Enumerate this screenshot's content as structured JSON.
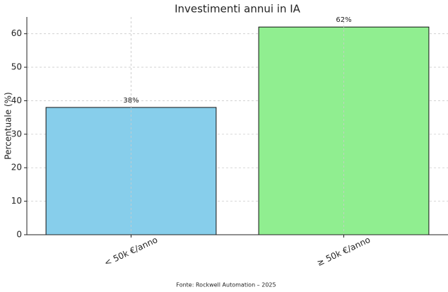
{
  "chart_data": {
    "type": "bar",
    "title": "Investimenti annui in IA",
    "categories": [
      "< 50k €/anno",
      "≥ 50k €/anno"
    ],
    "values": [
      38,
      62
    ],
    "value_labels": [
      "38%",
      "62%"
    ],
    "colors": [
      "#87ceeb",
      "#90ee90"
    ],
    "y_label": "Percentuale (%)",
    "ylim": [
      0,
      65
    ],
    "yticks": [
      0,
      10,
      20,
      30,
      40,
      50,
      60
    ],
    "grid": true,
    "source": "Fonte: Rockwell Automation – 2025"
  }
}
